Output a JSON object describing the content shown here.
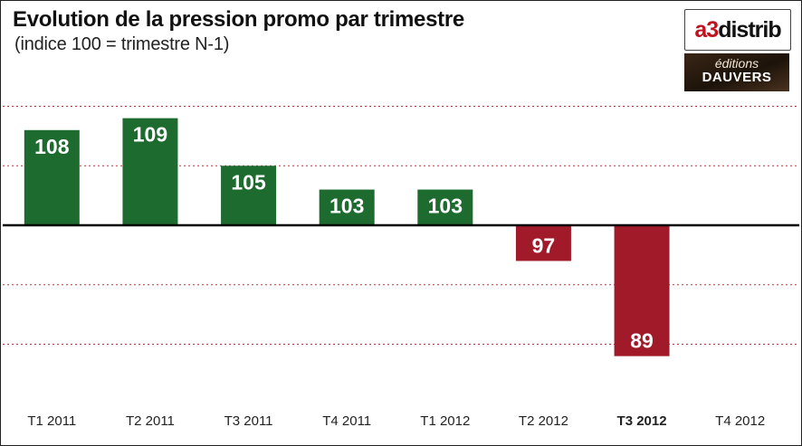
{
  "header": {
    "title": "Evolution de la pression promo par trimestre",
    "subtitle": "(indice 100 = trimestre N-1)"
  },
  "logos": {
    "a3distrib": {
      "a3": "a3",
      "distrib": "distrib"
    },
    "dauvers": {
      "editions": "éditions",
      "name": "DAUVERS"
    }
  },
  "colors": {
    "positive": "#1e6b30",
    "negative": "#a11a2a",
    "baseline": "#000000",
    "grid": "#c0343f"
  },
  "chart_data": {
    "type": "bar",
    "categories": [
      "T1 2011",
      "T2 2011",
      "T3 2011",
      "T4 2011",
      "T1 2012",
      "T2 2012",
      "T3 2012",
      "T4 2012"
    ],
    "values": [
      108,
      109,
      105,
      103,
      103,
      97,
      89,
      null
    ],
    "highlighted_category": "T3 2012",
    "baseline": 100,
    "ylim": [
      85,
      112
    ],
    "grid": true,
    "legend": false
  }
}
